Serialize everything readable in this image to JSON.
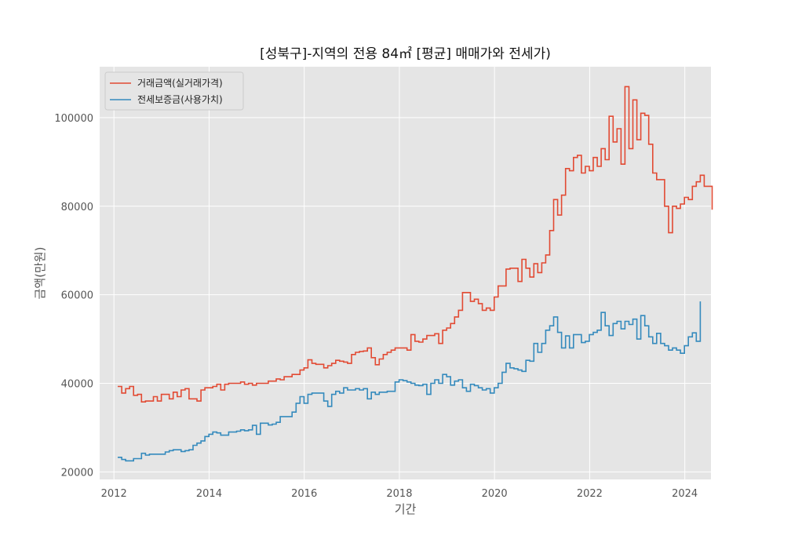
{
  "chart_data": {
    "type": "line",
    "title": "[성북구]-지역의 전용 84㎡ [평균] 매매가와 전세가)",
    "xlabel": "기간",
    "ylabel": "금액(만원)",
    "xlim": [
      2011.7,
      2024.55
    ],
    "ylim": [
      18300,
      111500
    ],
    "xticks": [
      2012,
      2014,
      2016,
      2018,
      2020,
      2022,
      2024
    ],
    "yticks": [
      20000,
      40000,
      60000,
      80000,
      100000
    ],
    "grid": true,
    "legend_position": "top-left",
    "step": true,
    "x_start": 2012.08,
    "x_step": 0.0833,
    "series": [
      {
        "name": "거래금액(실거래가격)",
        "color": "#E24A33",
        "values": [
          39300,
          37800,
          38800,
          39300,
          37300,
          37500,
          35800,
          36000,
          36000,
          37000,
          36000,
          37500,
          37500,
          36500,
          38000,
          37000,
          38500,
          38800,
          36500,
          36500,
          36000,
          38500,
          39000,
          39000,
          39300,
          39800,
          38500,
          39800,
          40000,
          40000,
          40000,
          40300,
          39800,
          40000,
          39600,
          40000,
          40000,
          40000,
          40500,
          40500,
          41000,
          40800,
          41500,
          41500,
          42000,
          42000,
          43000,
          43500,
          45300,
          44500,
          44300,
          44300,
          43500,
          44000,
          44500,
          45200,
          45000,
          44800,
          44500,
          46500,
          47000,
          47200,
          47300,
          48000,
          45800,
          44200,
          45500,
          46500,
          47000,
          47500,
          48000,
          48000,
          48000,
          47500,
          51000,
          49500,
          49300,
          50000,
          50800,
          50800,
          51200,
          49000,
          52000,
          52500,
          53500,
          55000,
          56500,
          60500,
          60500,
          58500,
          59000,
          58000,
          56500,
          57000,
          56500,
          59500,
          62000,
          62000,
          65800,
          66000,
          66000,
          63000,
          68000,
          66000,
          64000,
          67000,
          65000,
          67200,
          69000,
          74500,
          81500,
          78000,
          82500,
          88500,
          88000,
          91000,
          91500,
          87500,
          89000,
          88000,
          91000,
          89000,
          93000,
          90500,
          100300,
          94500,
          97500,
          89500,
          107000,
          93000,
          104000,
          95000,
          101000,
          100500,
          94000,
          87500,
          86000,
          86000,
          80000,
          74000,
          80000,
          79500,
          80500,
          82000,
          81500,
          84500,
          85500,
          87000,
          84500,
          84500,
          79200
        ]
      },
      {
        "name": "전세보증금(사용가치)",
        "color": "#348ABD",
        "values": [
          23300,
          22800,
          22500,
          22500,
          23000,
          23000,
          24200,
          23800,
          24000,
          24000,
          24000,
          24000,
          24500,
          24800,
          25000,
          25000,
          24600,
          24800,
          25000,
          26000,
          26500,
          27000,
          28000,
          28500,
          29000,
          28800,
          28300,
          28300,
          29000,
          29000,
          29200,
          29500,
          29300,
          29500,
          30500,
          28500,
          31000,
          31000,
          30600,
          30800,
          31200,
          32500,
          32500,
          32500,
          33500,
          35500,
          37000,
          35500,
          37500,
          37800,
          37800,
          37800,
          36000,
          34800,
          37500,
          38200,
          37800,
          39000,
          38500,
          38500,
          38800,
          38500,
          38800,
          36500,
          38000,
          37500,
          38000,
          38000,
          38200,
          38200,
          40300,
          40800,
          40600,
          40300,
          40000,
          39600,
          39500,
          39800,
          37500,
          40000,
          40800,
          40000,
          42000,
          41500,
          39600,
          40500,
          40800,
          39000,
          38200,
          39800,
          39500,
          39000,
          38500,
          38800,
          37800,
          39000,
          40000,
          42500,
          44500,
          43500,
          43300,
          43000,
          42700,
          45200,
          45000,
          49000,
          47000,
          49000,
          52000,
          53000,
          55000,
          51500,
          48000,
          50700,
          48000,
          51000,
          51000,
          49200,
          49500,
          51000,
          51500,
          52000,
          56000,
          53000,
          50800,
          53500,
          54000,
          52300,
          54000,
          53300,
          54500,
          50000,
          55300,
          53000,
          50500,
          49000,
          51300,
          49000,
          48500,
          47500,
          48000,
          47500,
          46800,
          48500,
          50500,
          51400,
          49500,
          58500
        ]
      }
    ]
  }
}
